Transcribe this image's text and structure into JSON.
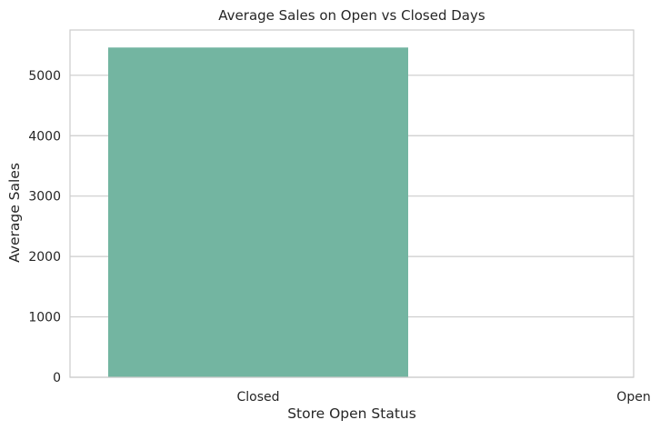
{
  "chart_data": {
    "type": "bar",
    "title": "Average Sales on Open vs Closed Days",
    "xlabel": "Store Open Status",
    "ylabel": "Average Sales",
    "categories": [
      "Closed",
      "Open"
    ],
    "values": [
      5460,
      0
    ],
    "ylim": [
      0,
      5750
    ],
    "yticks": [
      0,
      1000,
      2000,
      3000,
      4000,
      5000
    ],
    "ytick_labels": [
      "0",
      "1000",
      "2000",
      "3000",
      "4000",
      "5000"
    ],
    "grid": true,
    "bar_color": "#73b5a1",
    "grid_color": "#cccccc",
    "frame_color": "#cccccc"
  }
}
